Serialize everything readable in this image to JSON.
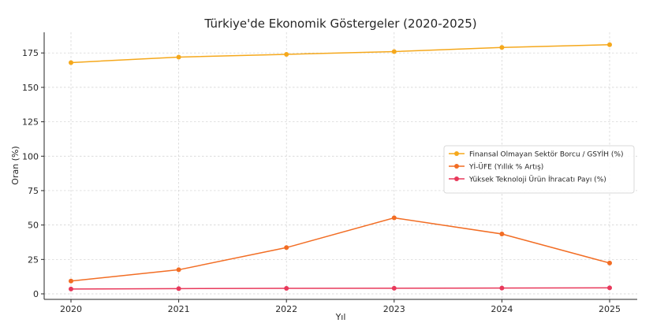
{
  "chart_data": {
    "type": "line",
    "title": "Türkiye'de Ekonomik Göstergeler (2020-2025)",
    "xlabel": "Yıl",
    "ylabel": "Oran (%)",
    "categories": [
      "2020",
      "2021",
      "2022",
      "2023",
      "2024",
      "2025"
    ],
    "yticks": [
      0,
      25,
      50,
      75,
      100,
      125,
      150,
      175
    ],
    "ylim": [
      -4,
      190
    ],
    "grid": true,
    "legend_position": "center-right",
    "series": [
      {
        "name": "Finansal Olmayan Sektör Borcu / GSYİH (%)",
        "color": "#f5a81c",
        "values": [
          168,
          172,
          174,
          176,
          179,
          181
        ]
      },
      {
        "name": "Yİ-ÜFE (Yıllık % Artış)",
        "color": "#f26d24",
        "values": [
          9.3,
          17.5,
          33.6,
          55.2,
          43.5,
          22.4
        ]
      },
      {
        "name": "Yüksek Teknoloji Ürün İhracatı Payı (%)",
        "color": "#e8395b",
        "values": [
          3.5,
          3.8,
          4.0,
          4.1,
          4.2,
          4.4
        ]
      }
    ]
  }
}
